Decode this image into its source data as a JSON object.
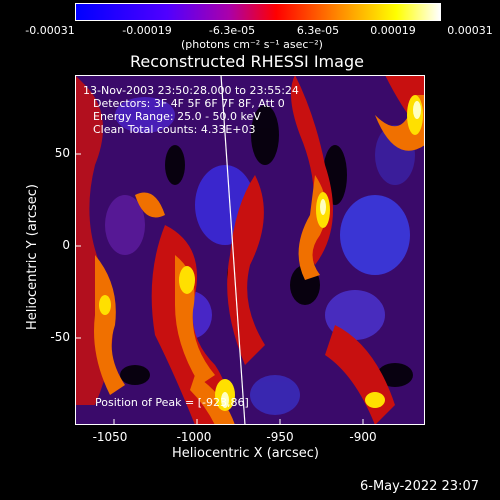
{
  "colorbar": {
    "ticks": [
      "-0.00031",
      "-0.00019",
      "-6.3e-05",
      "6.3e-05",
      "0.00019",
      "0.00031"
    ],
    "units_text": "(photons cm⁻² s⁻¹ asec⁻²)",
    "colors": [
      "#0000ff",
      "#6a00ff",
      "#ff0000",
      "#ff9900",
      "#ffff00",
      "#ffffff"
    ]
  },
  "title": "Reconstructed RHESSI Image",
  "annotations": {
    "time_range": "13-Nov-2003 23:50:28.000 to 23:55:24",
    "detectors": "Detectors: 3F 4F 5F 6F 7F 8F, Att 0",
    "energy": "Energy Range: 25.0 - 50.0 keV",
    "method": "Clean     Total counts: 4.33E+03",
    "peak": "Position of Peak = [-923,86]"
  },
  "axes": {
    "xlabel": "Heliocentric X (arcsec)",
    "ylabel": "Heliocentric Y (arcsec)",
    "xticks": [
      "-1050",
      "-1000",
      "-950",
      "-900"
    ],
    "yticks": [
      "50",
      "0",
      "-50"
    ]
  },
  "timestamp": "6-May-2022 23:07"
}
